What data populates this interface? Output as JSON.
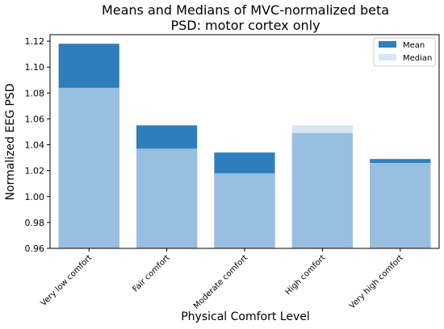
{
  "chart_data": {
    "type": "bar",
    "title_lines": [
      "Means and Medians of MVC-normalized beta",
      "PSD: motor cortex only"
    ],
    "xlabel": "Physical Comfort Level",
    "ylabel": "Normalized EEG PSD",
    "categories": [
      "Very low comfort",
      "Fair comfort",
      "Moderate comfort",
      "High comfort",
      "Very high comfort"
    ],
    "series": [
      {
        "name": "Mean",
        "values": [
          1.118,
          1.055,
          1.034,
          1.049,
          1.029
        ],
        "color": "#2e7ebc"
      },
      {
        "name": "Median",
        "values": [
          1.084,
          1.037,
          1.018,
          1.055,
          1.026
        ],
        "color": "#c6dbef",
        "alpha": 0.7
      }
    ],
    "ylim": [
      0.96,
      1.125
    ],
    "yticks": [
      "0.96",
      "0.98",
      "1.00",
      "1.02",
      "1.04",
      "1.06",
      "1.08",
      "1.10",
      "1.12"
    ],
    "legend_position": "top-right",
    "grid": false
  }
}
